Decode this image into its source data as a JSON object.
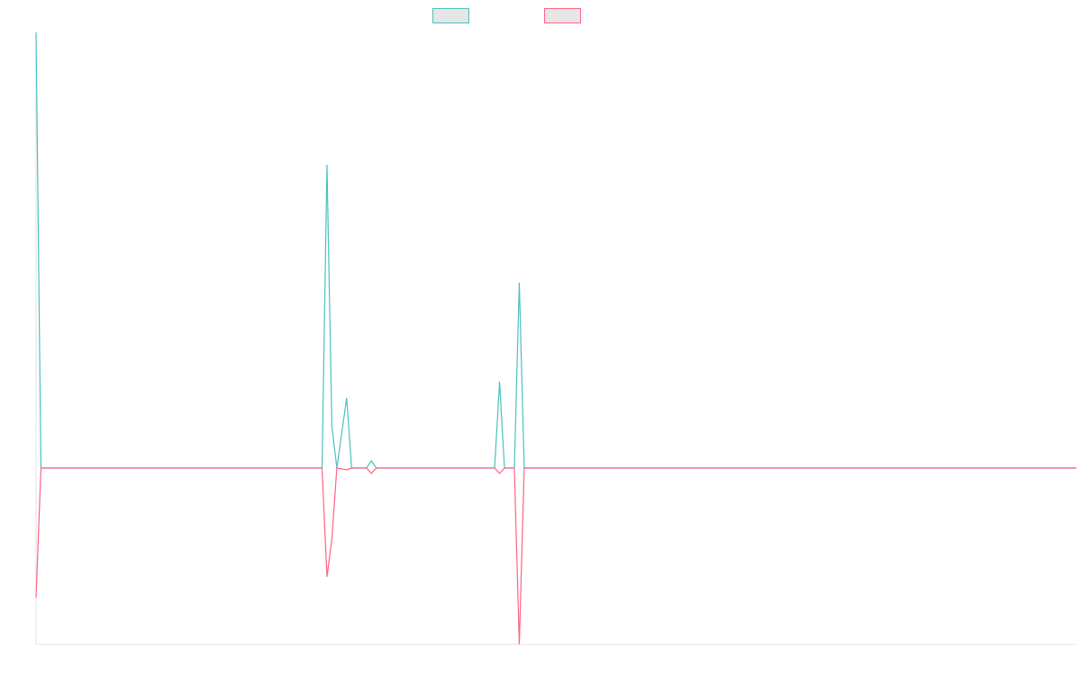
{
  "chart_data": {
    "type": "line",
    "x": [
      0,
      1,
      58,
      59,
      60,
      61,
      63,
      64,
      65,
      67,
      68,
      69,
      72,
      93,
      94,
      95,
      97,
      98,
      99,
      211
    ],
    "xlim": [
      0,
      211
    ],
    "ylim": [
      -196,
      484
    ],
    "legend": "top",
    "series": [
      {
        "color": "#4bc0c0",
        "values": [
          484,
          0,
          0,
          337,
          46,
          0,
          78,
          0,
          0,
          0,
          8,
          0,
          0,
          0,
          96,
          0,
          0,
          206,
          0,
          0
        ]
      },
      {
        "color": "#ff6384",
        "values": [
          -144,
          0,
          0,
          -121,
          -79,
          0,
          -2,
          0,
          0,
          0,
          -6,
          0,
          0,
          0,
          -6,
          0,
          0,
          -196,
          0,
          0
        ]
      }
    ]
  }
}
